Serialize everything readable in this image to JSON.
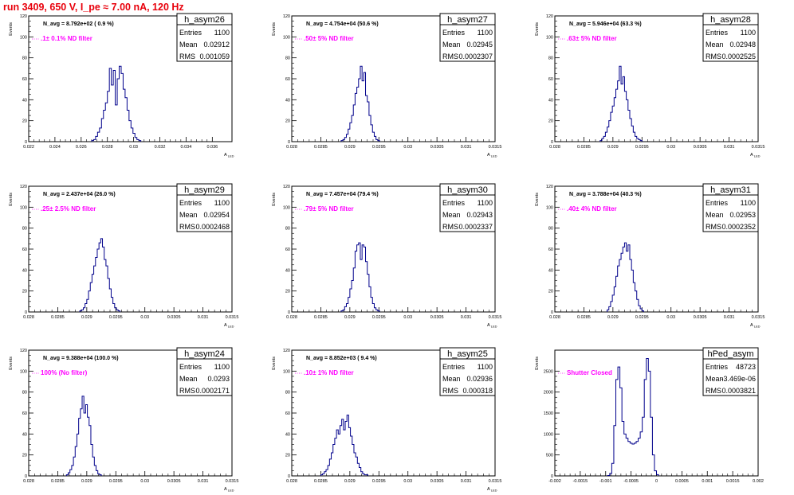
{
  "title": "run 3409,   650 V, I_pe ≈ 7.00 nA, 120 Hz",
  "stat_labels": {
    "entries": "Entries",
    "mean": "Mean",
    "rms": "RMS"
  },
  "colors": {
    "title": "#e8000b",
    "histogram": "#00008b",
    "annotation": "#ff00ff",
    "frame": "#000000"
  },
  "chart_data": [
    {
      "type": "bar",
      "name": "h_asym26",
      "ylabel": "Events",
      "xlabel": "A_LED",
      "ylim": [
        0,
        120
      ],
      "yticks": [
        0,
        20,
        40,
        60,
        80,
        100,
        120
      ],
      "xlim": [
        0.022,
        0.0375
      ],
      "xticks": [
        0.022,
        0.024,
        0.026,
        0.028,
        0.03,
        0.032,
        0.034,
        0.036
      ],
      "xtick_labels": [
        "0.022",
        "0.024",
        "0.026",
        "0.028",
        "0.03",
        "0.032",
        "0.034",
        "0.036"
      ],
      "stats": {
        "entries": "1100",
        "mean": "0.02912",
        "rms": "0.001059"
      },
      "navg": "N_avg = 8.792e+02 ( 0.9 %)",
      "annotation": ".1± 0.1% ND filter",
      "bin_start": 0.0268,
      "bin_width": 0.00015,
      "values": [
        1,
        2,
        5,
        9,
        13,
        22,
        30,
        37,
        48,
        70,
        54,
        68,
        35,
        60,
        72,
        65,
        50,
        42,
        30,
        20,
        13,
        8,
        4,
        2,
        1
      ]
    },
    {
      "type": "bar",
      "name": "h_asym27",
      "ylabel": "Events",
      "xlabel": "A_LED",
      "ylim": [
        0,
        120
      ],
      "yticks": [
        0,
        20,
        40,
        60,
        80,
        100,
        120
      ],
      "xlim": [
        0.028,
        0.0315
      ],
      "xticks": [
        0.028,
        0.0285,
        0.029,
        0.0295,
        0.03,
        0.0305,
        0.031,
        0.0315
      ],
      "xtick_labels": [
        "0.028",
        "0.0285",
        "0.029",
        "0.0295",
        "0.03",
        "0.0305",
        "0.031",
        "0.0315"
      ],
      "stats": {
        "entries": "1100",
        "mean": "0.02945",
        "rms": "0.0002307"
      },
      "navg": "N_avg = 4.754e+04 (50.6 %)",
      "annotation": ".50± 5% ND filter",
      "bin_start": 0.02885,
      "bin_width": 3e-05,
      "values": [
        1,
        2,
        4,
        7,
        12,
        18,
        25,
        35,
        46,
        52,
        60,
        72,
        58,
        66,
        44,
        38,
        25,
        16,
        9,
        5,
        2,
        1
      ]
    },
    {
      "type": "bar",
      "name": "h_asym28",
      "ylabel": "Events",
      "xlabel": "A_LED",
      "ylim": [
        0,
        120
      ],
      "yticks": [
        0,
        20,
        40,
        60,
        80,
        100,
        120
      ],
      "xlim": [
        0.028,
        0.0315
      ],
      "xticks": [
        0.028,
        0.0285,
        0.029,
        0.0295,
        0.03,
        0.0305,
        0.031,
        0.0315
      ],
      "xtick_labels": [
        "0.028",
        "0.0285",
        "0.029",
        "0.0295",
        "0.03",
        "0.0305",
        "0.031",
        "0.0315"
      ],
      "stats": {
        "entries": "1100",
        "mean": "0.02948",
        "rms": "0.0002525"
      },
      "navg": "N_avg = 5.946e+04 (63.3 %)",
      "annotation": ".63± 5% ND filter",
      "bin_start": 0.02878,
      "bin_width": 3e-05,
      "values": [
        1,
        3,
        5,
        9,
        14,
        20,
        28,
        34,
        42,
        50,
        58,
        72,
        55,
        62,
        48,
        40,
        30,
        22,
        15,
        9,
        5,
        3,
        2,
        1
      ]
    },
    {
      "type": "bar",
      "name": "h_asym29",
      "ylabel": "Events",
      "xlabel": "A_LED",
      "ylim": [
        0,
        120
      ],
      "yticks": [
        0,
        20,
        40,
        60,
        80,
        100,
        120
      ],
      "xlim": [
        0.028,
        0.0315
      ],
      "xticks": [
        0.028,
        0.0285,
        0.029,
        0.0295,
        0.03,
        0.0305,
        0.031,
        0.0315
      ],
      "xtick_labels": [
        "0.028",
        "0.0285",
        "0.029",
        "0.0295",
        "0.03",
        "0.0305",
        "0.031",
        "0.0315"
      ],
      "stats": {
        "entries": "1100",
        "mean": "0.02954",
        "rms": "0.0002468"
      },
      "navg": "N_avg = 2.437e+04 (26.0 %)",
      "annotation": ".25± 2.5% ND filter",
      "bin_start": 0.02888,
      "bin_width": 3e-05,
      "values": [
        1,
        2,
        4,
        8,
        12,
        20,
        28,
        36,
        44,
        52,
        60,
        66,
        70,
        62,
        50,
        44,
        32,
        22,
        14,
        8,
        4,
        2,
        1
      ]
    },
    {
      "type": "bar",
      "name": "h_asym30",
      "ylabel": "Events",
      "xlabel": "A_LED",
      "ylim": [
        0,
        120
      ],
      "yticks": [
        0,
        20,
        40,
        60,
        80,
        100,
        120
      ],
      "xlim": [
        0.028,
        0.0315
      ],
      "xticks": [
        0.028,
        0.0285,
        0.029,
        0.0295,
        0.03,
        0.0305,
        0.031,
        0.0315
      ],
      "xtick_labels": [
        "0.028",
        "0.0285",
        "0.029",
        "0.0295",
        "0.03",
        "0.0305",
        "0.031",
        "0.0315"
      ],
      "stats": {
        "entries": "1100",
        "mean": "0.02943",
        "rms": "0.0002337"
      },
      "navg": "N_avg = 7.457e+04 (79.4 %)",
      "annotation": ".79± 5% ND filter",
      "bin_start": 0.02885,
      "bin_width": 3e-05,
      "values": [
        1,
        2,
        5,
        8,
        14,
        22,
        30,
        42,
        58,
        64,
        66,
        50,
        64,
        62,
        48,
        36,
        24,
        14,
        8,
        4,
        2,
        1
      ]
    },
    {
      "type": "bar",
      "name": "h_asym31",
      "ylabel": "Events",
      "xlabel": "A_LED",
      "ylim": [
        0,
        120
      ],
      "yticks": [
        0,
        20,
        40,
        60,
        80,
        100,
        120
      ],
      "xlim": [
        0.028,
        0.0315
      ],
      "xticks": [
        0.028,
        0.0285,
        0.029,
        0.0295,
        0.03,
        0.0305,
        0.031,
        0.0315
      ],
      "xtick_labels": [
        "0.028",
        "0.0285",
        "0.029",
        "0.0295",
        "0.03",
        "0.0305",
        "0.031",
        "0.0315"
      ],
      "stats": {
        "entries": "1100",
        "mean": "0.02953",
        "rms": "0.0002352"
      },
      "navg": "N_avg = 3.788e+04 (40.3 %)",
      "annotation": ".40± 4% ND filter",
      "bin_start": 0.0289,
      "bin_width": 3e-05,
      "values": [
        2,
        5,
        10,
        16,
        24,
        34,
        44,
        50,
        56,
        62,
        66,
        58,
        64,
        50,
        40,
        28,
        20,
        12,
        6,
        3,
        1
      ]
    },
    {
      "type": "bar",
      "name": "h_asym24",
      "ylabel": "Events",
      "xlabel": "A_LED",
      "ylim": [
        0,
        120
      ],
      "yticks": [
        0,
        20,
        40,
        60,
        80,
        100,
        120
      ],
      "xlim": [
        0.028,
        0.0315
      ],
      "xticks": [
        0.028,
        0.0285,
        0.029,
        0.0295,
        0.03,
        0.0305,
        0.031,
        0.0315
      ],
      "xtick_labels": [
        "0.028",
        "0.0285",
        "0.029",
        "0.0295",
        "0.03",
        "0.0305",
        "0.031",
        "0.0315"
      ],
      "stats": {
        "entries": "1100",
        "mean": "0.0293",
        "rms": "0.0002171"
      },
      "navg": "N_avg = 9.388e+04 (100.0 %)",
      "annotation": "100% (No filter)",
      "bin_start": 0.02865,
      "bin_width": 3e-05,
      "values": [
        1,
        3,
        6,
        10,
        18,
        28,
        40,
        55,
        64,
        76,
        60,
        68,
        56,
        48,
        30,
        18,
        10,
        5,
        2,
        1
      ]
    },
    {
      "type": "bar",
      "name": "h_asym25",
      "ylabel": "Events",
      "xlabel": "A_LED",
      "ylim": [
        0,
        120
      ],
      "yticks": [
        0,
        20,
        40,
        60,
        80,
        100,
        120
      ],
      "xlim": [
        0.028,
        0.0315
      ],
      "xticks": [
        0.028,
        0.0285,
        0.029,
        0.0295,
        0.03,
        0.0305,
        0.031,
        0.0315
      ],
      "xtick_labels": [
        "0.028",
        "0.0285",
        "0.029",
        "0.0295",
        "0.03",
        "0.0305",
        "0.031",
        "0.0315"
      ],
      "stats": {
        "entries": "1100",
        "mean": "0.02936",
        "rms": "0.000318"
      },
      "navg": "N_avg = 8.852e+03 ( 9.4 %)",
      "annotation": ".10± 1% ND filter",
      "bin_start": 0.0285,
      "bin_width": 3e-05,
      "values": [
        1,
        2,
        4,
        6,
        10,
        16,
        22,
        30,
        36,
        44,
        40,
        48,
        54,
        44,
        52,
        58,
        46,
        38,
        30,
        22,
        18,
        12,
        8,
        4,
        2,
        1,
        1
      ]
    },
    {
      "type": "bar",
      "name": "hPed_asym",
      "ylabel": "Events",
      "xlabel": "",
      "ylim": [
        0,
        3000
      ],
      "yticks": [
        0,
        500,
        1000,
        1500,
        2000,
        2500
      ],
      "xlim": [
        -0.002,
        0.002
      ],
      "xticks": [
        -0.002,
        -0.0015,
        -0.001,
        -0.0005,
        0,
        0.0005,
        0.001,
        0.0015,
        0.002
      ],
      "xtick_labels": [
        "-0.002",
        "-0.0015",
        "-0.001",
        "-0.0005",
        "0",
        "0.0005",
        "0.001",
        "0.0015",
        "0.002"
      ],
      "stats": {
        "entries": "48723",
        "mean": "-3.469e-06",
        "rms": "0.0003821"
      },
      "navg": "",
      "annotation": "Shutter Closed",
      "bin_start": -0.00096,
      "bin_width": 4e-05,
      "values": [
        10,
        60,
        300,
        1200,
        2300,
        2600,
        2100,
        1300,
        1000,
        900,
        820,
        780,
        760,
        780,
        820,
        900,
        1050,
        1400,
        2300,
        2800,
        2500,
        1400,
        500,
        120,
        30
      ]
    }
  ]
}
